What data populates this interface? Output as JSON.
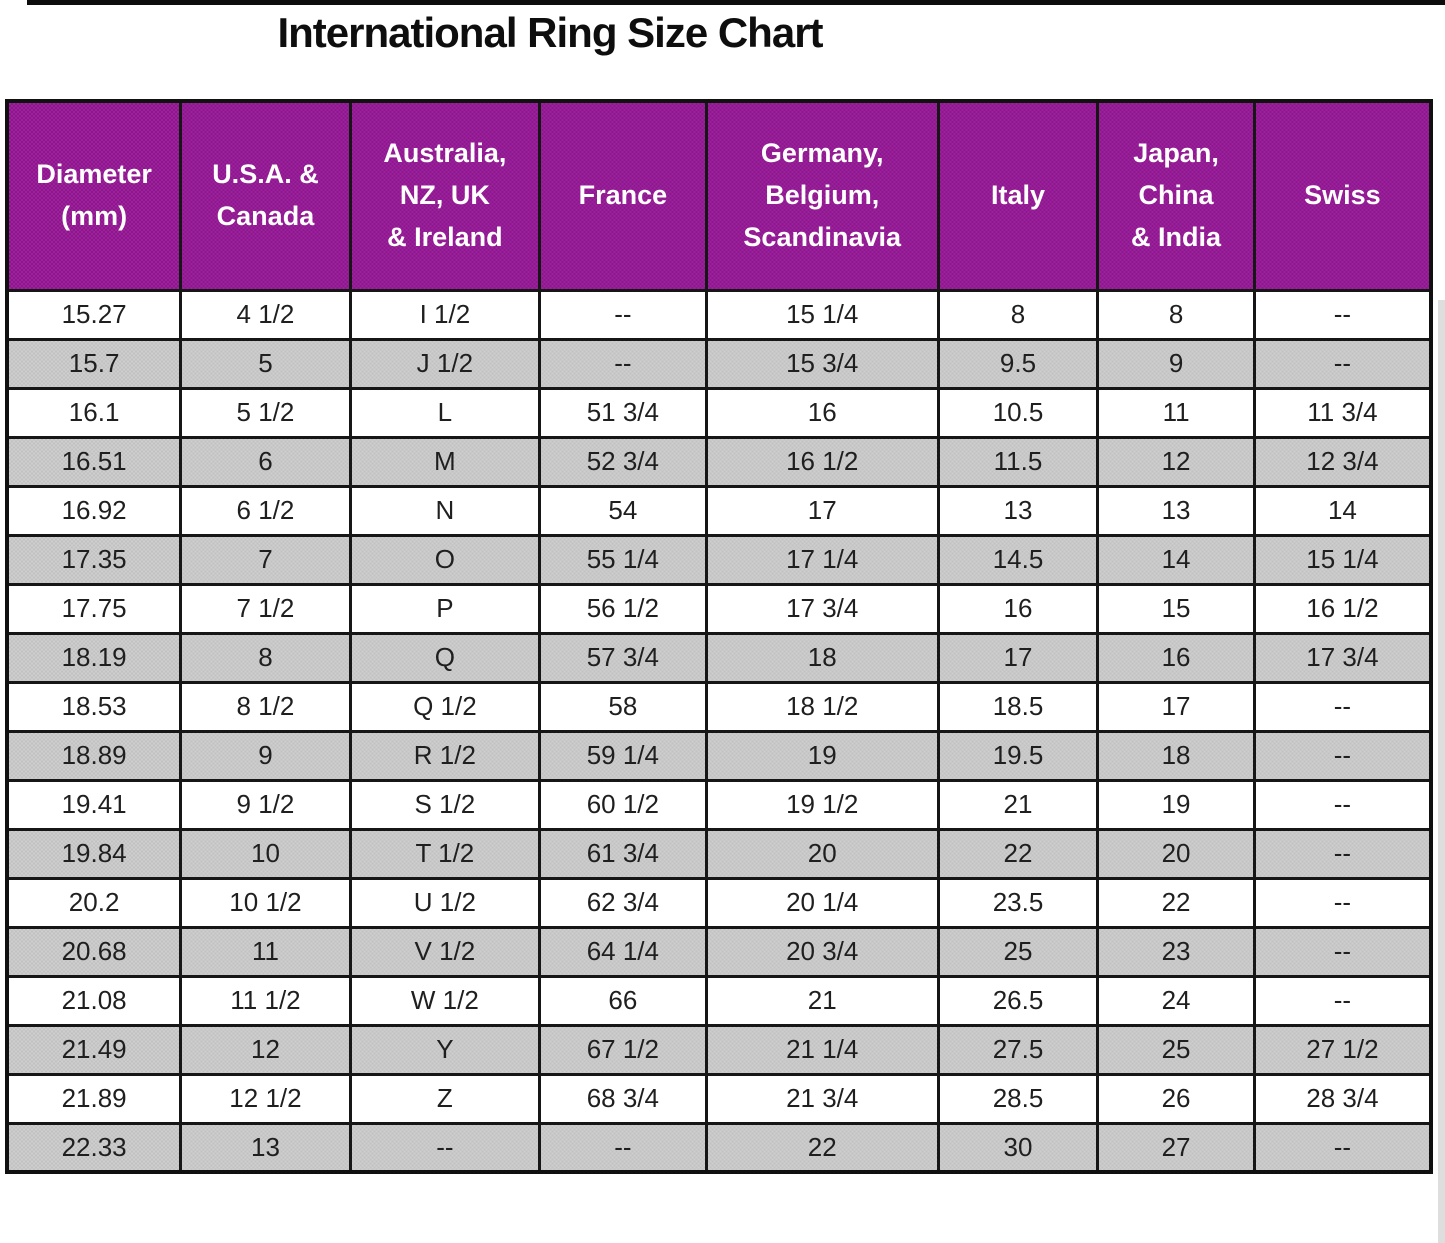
{
  "page": {
    "title": "International Ring Size Chart"
  },
  "colors": {
    "header_bg": "#8E178E",
    "header_bg_dither": "#9C229C",
    "header_text": "#FFFFFF",
    "shaded_row_bg": "#C9C9C9",
    "plain_row_bg": "#FFFFFF",
    "border": "#161616",
    "cell_text": "#1F1F1F"
  },
  "chart_data": {
    "type": "table",
    "title": "International Ring Size Chart",
    "legend_position": "none",
    "grid": true,
    "columns": [
      "Diameter\n(mm)",
      "U.S.A. &\nCanada",
      "Australia,\nNZ, UK\n& Ireland",
      "France",
      "Germany,\nBelgium,\nScandinavia",
      "Italy",
      "Japan,\nChina\n& India",
      "Swiss"
    ],
    "rows": [
      [
        "15.27",
        "4 1/2",
        "I 1/2",
        "--",
        "15 1/4",
        "8",
        "8",
        "--"
      ],
      [
        "15.7",
        "5",
        "J 1/2",
        "--",
        "15 3/4",
        "9.5",
        "9",
        "--"
      ],
      [
        "16.1",
        "5 1/2",
        "L",
        "51 3/4",
        "16",
        "10.5",
        "11",
        "11 3/4"
      ],
      [
        "16.51",
        "6",
        "M",
        "52 3/4",
        "16 1/2",
        "11.5",
        "12",
        "12 3/4"
      ],
      [
        "16.92",
        "6 1/2",
        "N",
        "54",
        "17",
        "13",
        "13",
        "14"
      ],
      [
        "17.35",
        "7",
        "O",
        "55 1/4",
        "17 1/4",
        "14.5",
        "14",
        "15 1/4"
      ],
      [
        "17.75",
        "7 1/2",
        "P",
        "56 1/2",
        "17 3/4",
        "16",
        "15",
        "16 1/2"
      ],
      [
        "18.19",
        "8",
        "Q",
        "57 3/4",
        "18",
        "17",
        "16",
        "17 3/4"
      ],
      [
        "18.53",
        "8 1/2",
        "Q 1/2",
        "58",
        "18 1/2",
        "18.5",
        "17",
        "--"
      ],
      [
        "18.89",
        "9",
        "R 1/2",
        "59 1/4",
        "19",
        "19.5",
        "18",
        "--"
      ],
      [
        "19.41",
        "9 1/2",
        "S 1/2",
        "60 1/2",
        "19 1/2",
        "21",
        "19",
        "--"
      ],
      [
        "19.84",
        "10",
        "T 1/2",
        "61 3/4",
        "20",
        "22",
        "20",
        "--"
      ],
      [
        "20.2",
        "10 1/2",
        "U 1/2",
        "62 3/4",
        "20 1/4",
        "23.5",
        "22",
        "--"
      ],
      [
        "20.68",
        "11",
        "V 1/2",
        "64 1/4",
        "20 3/4",
        "25",
        "23",
        "--"
      ],
      [
        "21.08",
        "11 1/2",
        "W 1/2",
        "66",
        "21",
        "26.5",
        "24",
        "--"
      ],
      [
        "21.49",
        "12",
        "Y",
        "67 1/2",
        "21 1/4",
        "27.5",
        "25",
        "27 1/2"
      ],
      [
        "21.89",
        "12 1/2",
        "Z",
        "68 3/4",
        "21 3/4",
        "28.5",
        "26",
        "28 3/4"
      ],
      [
        "22.33",
        "13",
        "--",
        "--",
        "22",
        "30",
        "27",
        "--"
      ]
    ]
  }
}
